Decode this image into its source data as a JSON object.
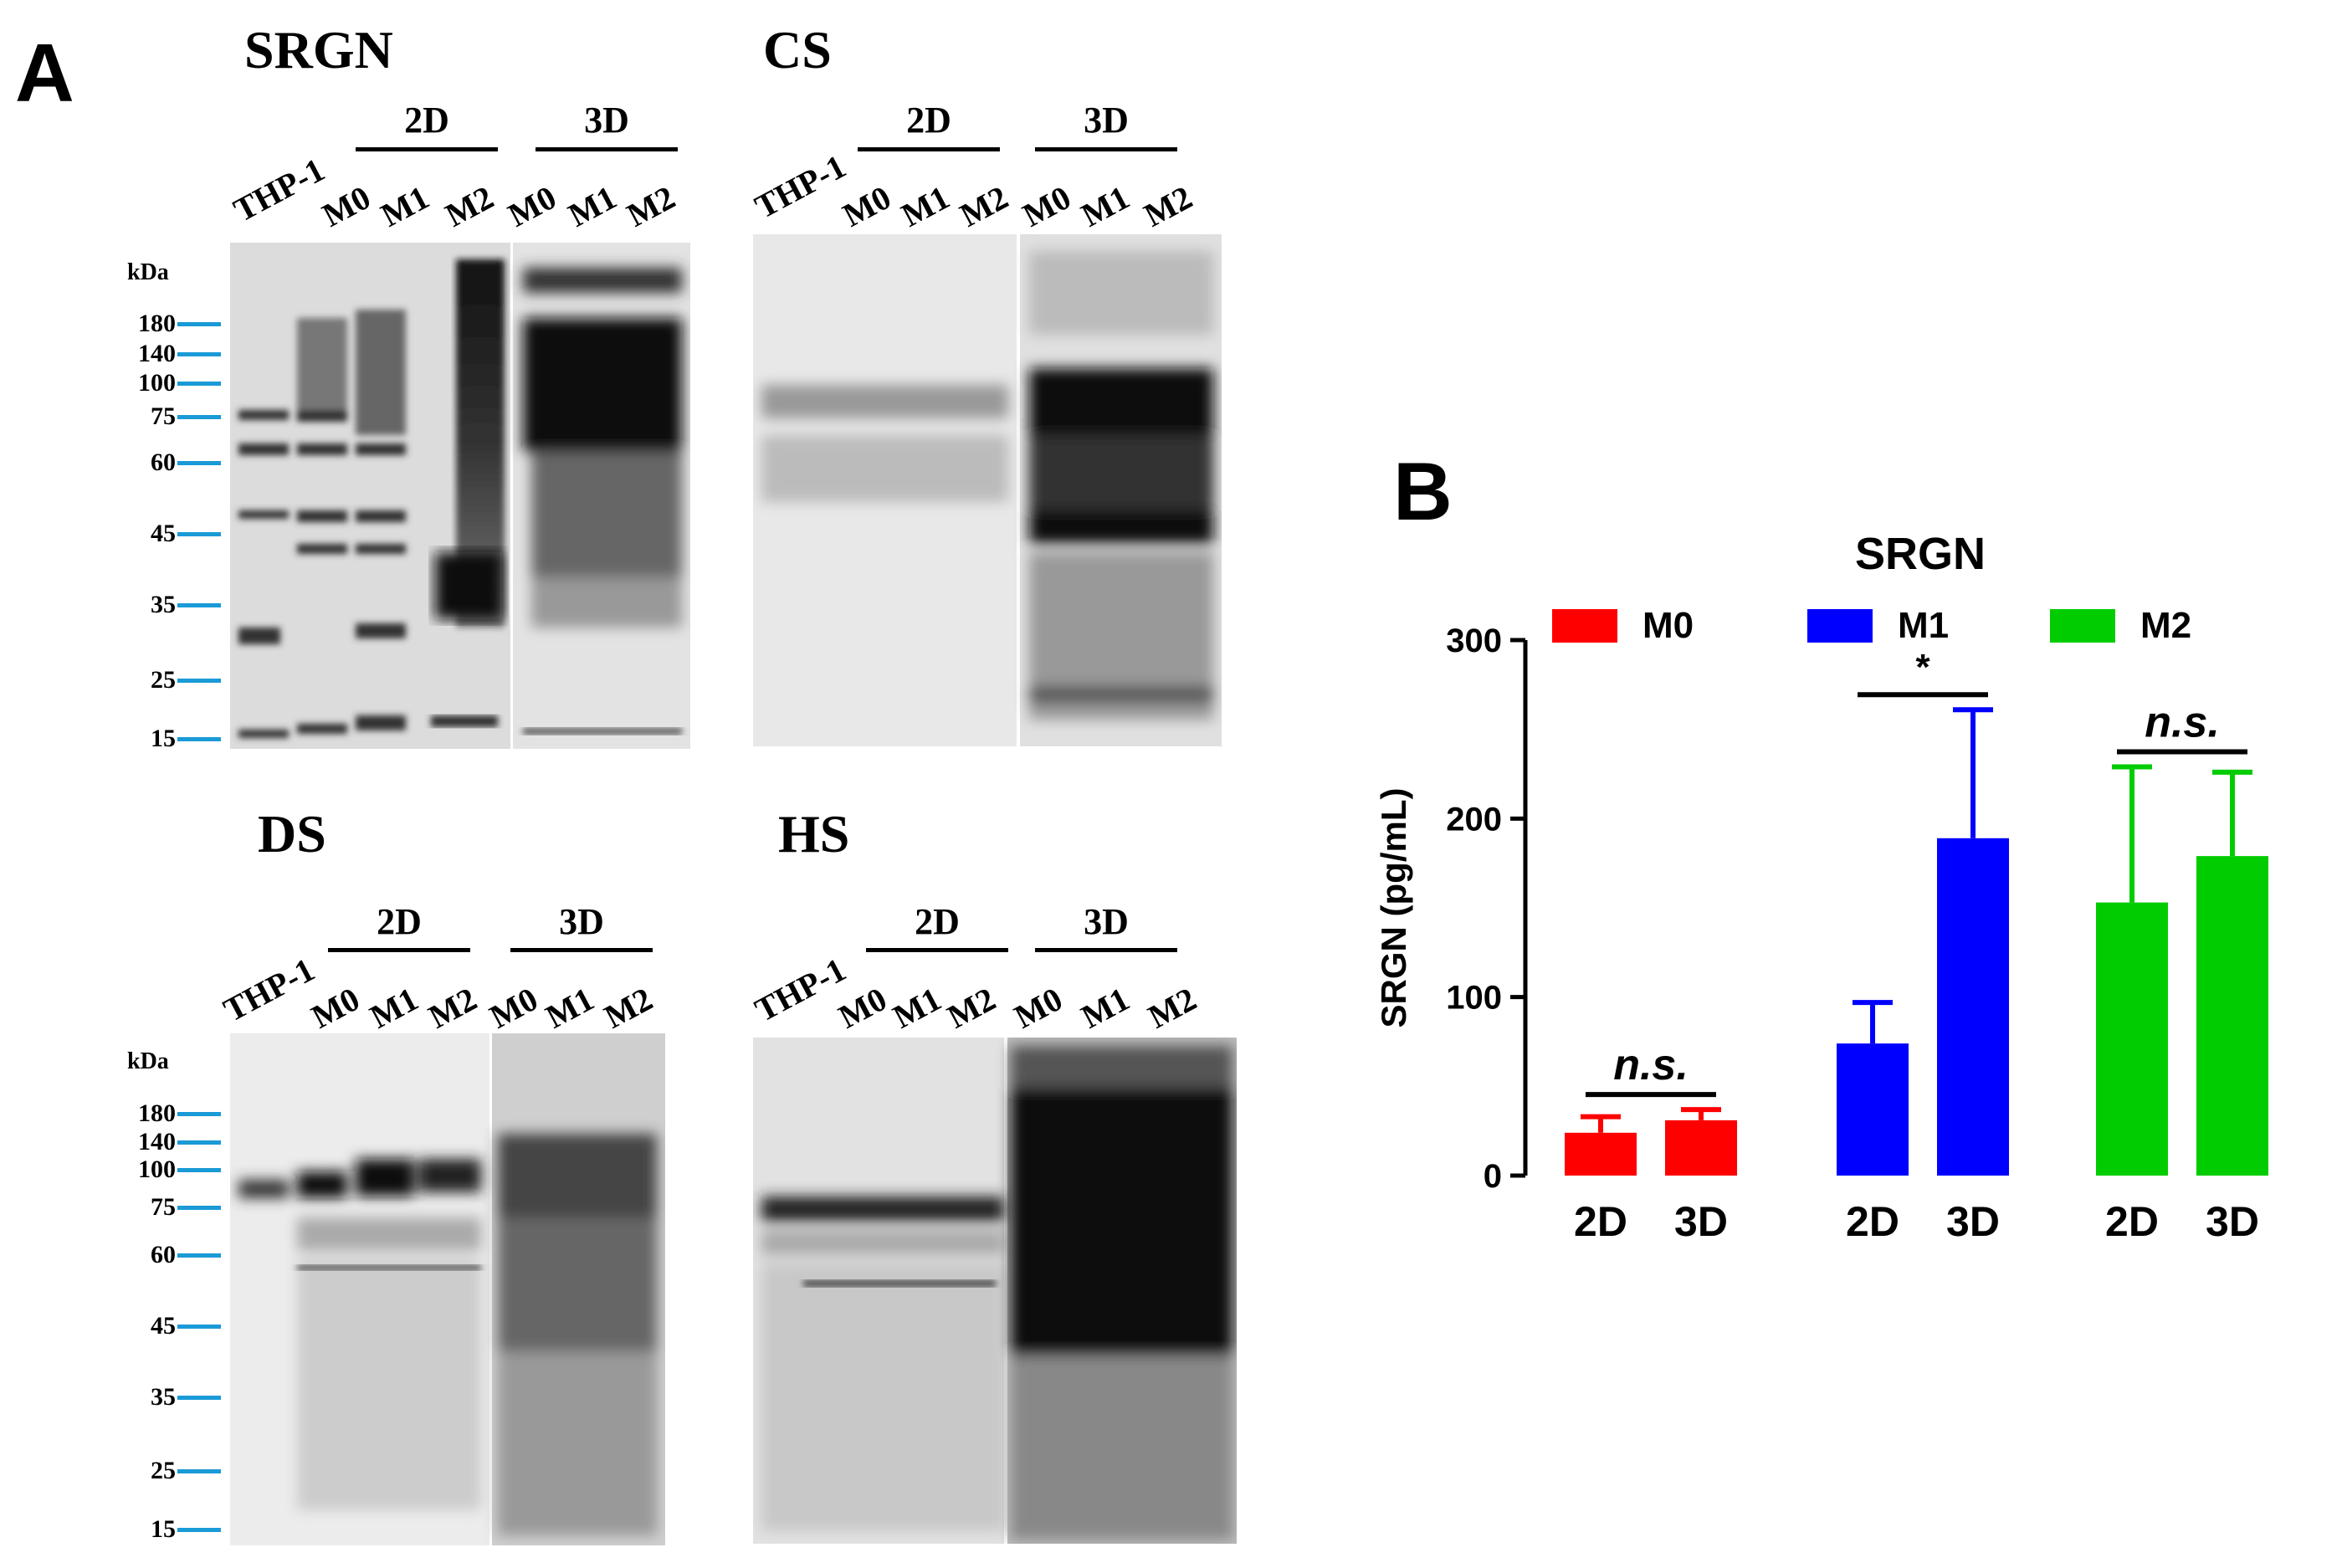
{
  "panel_a": {
    "letter": "A",
    "kda_label": "kDa",
    "blots": [
      {
        "id": "srgn",
        "title": "SRGN",
        "group_2d": "2D",
        "group_3d": "3D",
        "lanes": [
          "THP-1",
          "M0",
          "M1",
          "M2",
          "M0",
          "M1",
          "M2"
        ],
        "markers": [
          "180",
          "140",
          "100",
          "75",
          "60",
          "45",
          "35",
          "25",
          "15"
        ]
      },
      {
        "id": "cs",
        "title": "CS",
        "group_2d": "2D",
        "group_3d": "3D",
        "lanes": [
          "THP-1",
          "M0",
          "M1",
          "M2",
          "M0",
          "M1",
          "M2"
        ]
      },
      {
        "id": "ds",
        "title": "DS",
        "group_2d": "2D",
        "group_3d": "3D",
        "lanes": [
          "THP-1",
          "M0",
          "M1",
          "M2",
          "M0",
          "M1",
          "M2"
        ],
        "markers": [
          "180",
          "140",
          "100",
          "75",
          "60",
          "45",
          "35",
          "25",
          "15"
        ]
      },
      {
        "id": "hs",
        "title": "HS",
        "group_2d": "2D",
        "group_3d": "3D",
        "lanes": [
          "THP-1",
          "M0",
          "M1",
          "M2",
          "M0",
          "M1",
          "M2"
        ]
      }
    ]
  },
  "panel_b": {
    "letter": "B",
    "chart_data": {
      "type": "bar",
      "title": "SRGN",
      "ylabel": "SRGN (pg/mL)",
      "xlabel": "",
      "ylim": [
        0,
        300
      ],
      "yticks": [
        0,
        100,
        200,
        300
      ],
      "legend_position": "top",
      "categories": [
        "2D",
        "3D"
      ],
      "groups": [
        {
          "name": "M0",
          "color": "#ff0000",
          "values": [
            24,
            31
          ],
          "errors": [
            9,
            6
          ],
          "significance": "n.s."
        },
        {
          "name": "M1",
          "color": "#0000ff",
          "values": [
            74,
            189
          ],
          "errors": [
            23,
            72
          ],
          "significance": "*"
        },
        {
          "name": "M2",
          "color": "#00cc00",
          "values": [
            153,
            179
          ],
          "errors": [
            76,
            47
          ],
          "significance": "n.s."
        }
      ]
    }
  }
}
